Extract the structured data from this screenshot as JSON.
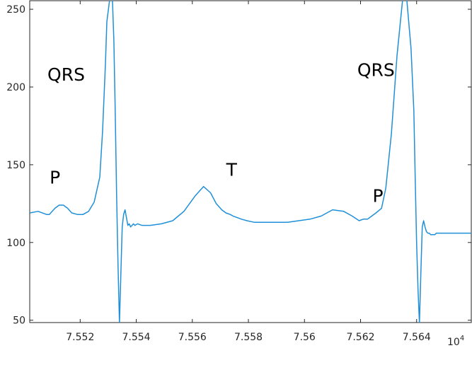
{
  "chart_data": {
    "type": "line",
    "title": "",
    "xlabel": "",
    "ylabel": "",
    "x_exponent_base": "10",
    "x_exponent_power": "4",
    "xlim": [
      75.502,
      75.6595
    ],
    "ylim": [
      48.5,
      255.5
    ],
    "grid": false,
    "x_ticks": [
      75.52,
      75.54,
      75.56,
      75.58,
      75.6,
      75.62,
      75.64
    ],
    "x_tick_labels": [
      "7.552",
      "7.554",
      "7.556",
      "7.558",
      "7.56",
      "7.562",
      "7.564"
    ],
    "y_ticks": [
      50,
      100,
      150,
      200,
      250
    ],
    "y_tick_labels": [
      "50",
      "100",
      "150",
      "200",
      "250"
    ],
    "line_color": "#1f90d8",
    "series": [
      {
        "x": [
          75.502,
          75.505,
          75.508,
          75.509,
          75.511,
          75.5125,
          75.514,
          75.5155,
          75.517,
          75.519,
          75.521,
          75.523,
          75.525,
          75.527,
          75.528,
          75.529,
          75.5295,
          75.5305,
          75.5315,
          75.532,
          75.5325,
          75.533,
          75.5335,
          75.534,
          75.5345,
          75.535,
          75.5355,
          75.536,
          75.5365,
          75.537,
          75.5375,
          75.538,
          75.5385,
          75.539,
          75.5395,
          75.5405,
          75.542,
          75.545,
          75.549,
          75.553,
          75.557,
          75.561,
          75.564,
          75.5665,
          75.5685,
          75.5705,
          75.572,
          75.5735,
          75.5745,
          75.576,
          75.5775,
          75.5795,
          75.582,
          75.586,
          75.59,
          75.594,
          75.598,
          75.602,
          75.606,
          75.61,
          75.614,
          75.617,
          75.6195,
          75.621,
          75.6225,
          75.624,
          75.6255,
          75.6275,
          75.629,
          75.631,
          75.633,
          75.635,
          75.6365,
          75.638,
          75.639,
          75.6395,
          75.64,
          75.6405,
          75.641,
          75.6415,
          75.642,
          75.6425,
          75.643,
          75.6435,
          75.644,
          75.6445,
          75.645,
          75.6455,
          75.646,
          75.6465,
          75.647,
          75.6475,
          75.648,
          75.649,
          75.6505,
          75.652,
          75.6545,
          75.657,
          75.6595
        ],
        "y": [
          119,
          120,
          118,
          118,
          122,
          124,
          124,
          122,
          119,
          118,
          118,
          120,
          126,
          142,
          172,
          215,
          242,
          256,
          256,
          230,
          185,
          130,
          85,
          48,
          80,
          110,
          118,
          121,
          116,
          111,
          112,
          110,
          111,
          112,
          111,
          112,
          111,
          111,
          112,
          114,
          120,
          130,
          136,
          132,
          125,
          121,
          119,
          118,
          117,
          116,
          115,
          114,
          113,
          113,
          113,
          113,
          114,
          115,
          117,
          121,
          120,
          117,
          114,
          115,
          115,
          117,
          119,
          122,
          135,
          170,
          220,
          256,
          256,
          225,
          185,
          140,
          100,
          70,
          48,
          80,
          110,
          114,
          110,
          107,
          106,
          106,
          105,
          105,
          105,
          105,
          106,
          106,
          106,
          106,
          106,
          106,
          106,
          106,
          106
        ]
      }
    ],
    "annotations": [
      {
        "text": "QRS",
        "x": 75.515,
        "y": 204
      },
      {
        "text": "P",
        "x": 75.511,
        "y": 138
      },
      {
        "text": "T",
        "x": 75.574,
        "y": 143
      },
      {
        "text": "QRS",
        "x": 75.6255,
        "y": 207
      },
      {
        "text": "P",
        "x": 75.6262,
        "y": 126
      }
    ]
  }
}
